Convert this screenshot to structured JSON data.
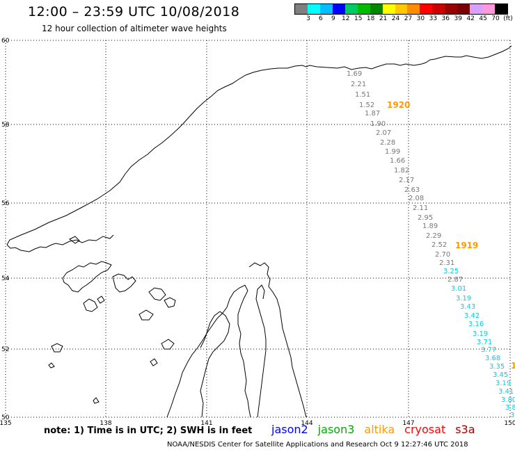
{
  "header": {
    "title": "12:00 – 23:59 UTC 10/08/2018",
    "subtitle": "12 hour collection of altimeter wave heights"
  },
  "legend": {
    "colors": [
      "#7f7f7f",
      "#00ffff",
      "#00bfff",
      "#0000ff",
      "#00cc66",
      "#00bb00",
      "#008800",
      "#ffff00",
      "#ffc800",
      "#ff8c00",
      "#ff0000",
      "#cc0000",
      "#990000",
      "#7a0000",
      "#d8a0ff",
      "#ff99dd",
      "#000000"
    ],
    "labels": [
      "3",
      "6",
      "9",
      "12",
      "15",
      "18",
      "21",
      "24",
      "27",
      "30",
      "33",
      "36",
      "39",
      "42",
      "45",
      "70",
      "(ft)"
    ]
  },
  "axes": {
    "lat_labels": [
      "60",
      "58",
      "56",
      "54",
      "52",
      "50"
    ],
    "lon_labels": [
      "135",
      "138",
      "141",
      "144",
      "147",
      "150"
    ]
  },
  "track_labels": {
    "gray": [
      "1.69",
      "2.21",
      "1.51",
      "1.52",
      "1.87",
      "1.90",
      "2.07",
      "2.28",
      "1.99",
      "1.66",
      "1.82",
      "2.17",
      "2.63",
      "2.08",
      "2.11",
      "2.95",
      "1.89",
      "2.29",
      "2.52",
      "2.70",
      "2.31",
      "2.87"
    ],
    "cyan": [
      "3.25",
      "3.01",
      "3.19",
      "3.43",
      "3.42",
      "3.16",
      "3.19",
      "3.71",
      "3.77",
      "3.68",
      "3.35",
      "3.45",
      "3.19",
      "3.41",
      "3.80",
      "3.8",
      "3"
    ],
    "times": [
      "1920",
      "1919",
      "1"
    ],
    "gray_color": "#777777",
    "cyan_color": "#00ccee",
    "time_color": "#ff9900"
  },
  "footer": {
    "note": "note: 1) Time is in UTC; 2) SWH is in feet",
    "satellites": [
      {
        "name": "jason2",
        "color": "#0000ff"
      },
      {
        "name": "jason3",
        "color": "#00aa00"
      },
      {
        "name": "altika",
        "color": "#ff9900"
      },
      {
        "name": "cryosat",
        "color": "#ff0000"
      },
      {
        "name": "s3a",
        "color": "#990000"
      }
    ],
    "credit": "NOAA/NESDIS Center for Satellite Applications and Research   Oct  9 12:27:46 UTC 2018"
  }
}
